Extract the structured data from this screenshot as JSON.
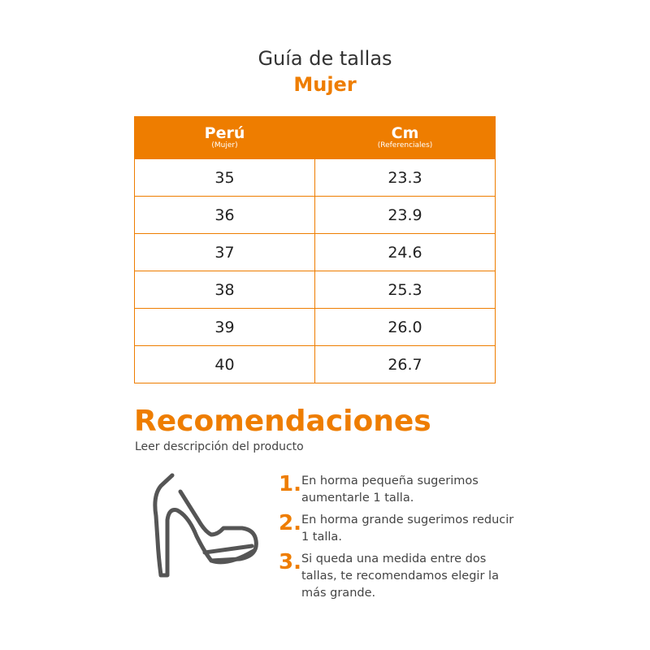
{
  "header": {
    "title": "Guía de tallas",
    "subtitle": "Mujer"
  },
  "table": {
    "columns": [
      {
        "label": "Perú",
        "sub": "(Mujer)"
      },
      {
        "label": "Cm",
        "sub": "(Referenciales)"
      }
    ],
    "rows": [
      [
        "35",
        "23.3"
      ],
      [
        "36",
        "23.9"
      ],
      [
        "37",
        "24.6"
      ],
      [
        "38",
        "25.3"
      ],
      [
        "39",
        "26.0"
      ],
      [
        "40",
        "26.7"
      ]
    ]
  },
  "recommendations": {
    "title": "Recomendaciones",
    "subtitle": "Leer descripción del producto",
    "items": [
      {
        "num": "1.",
        "text": "En horma pequeña sugerimos aumentarle 1 talla."
      },
      {
        "num": "2.",
        "text": "En horma grande sugerimos reducir 1 talla."
      },
      {
        "num": "3.",
        "text": "Si queda una medida entre dos tallas, te recomendamos elegir la más grande."
      }
    ]
  },
  "icons": {
    "shoe": "high-heel-shoe-icon"
  },
  "colors": {
    "accent": "#ee7d00"
  }
}
